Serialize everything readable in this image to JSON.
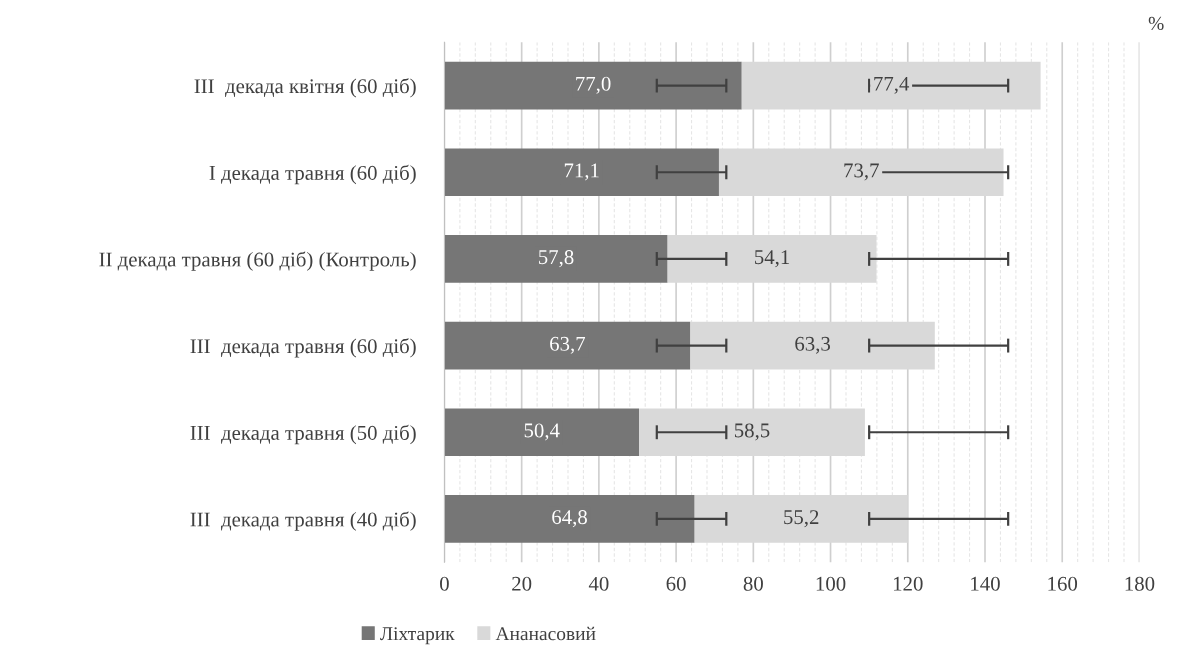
{
  "chart_data": {
    "type": "bar",
    "orientation": "horizontal",
    "stacked": true,
    "categories": [
      "III  декада квітня (60 діб)",
      "I декада травня (60 діб)",
      "II декада травня (60 діб) (Контроль)",
      "III  декада травня (60 діб)",
      "III  декада травня (50 діб)",
      "III  декада травня (40 діб)"
    ],
    "series": [
      {
        "name": "Ліхтарик",
        "color": "#767676",
        "values": [
          77.0,
          71.1,
          57.8,
          63.7,
          50.4,
          64.8
        ],
        "value_labels": [
          "77,0",
          "71,1",
          "57,8",
          "63,7",
          "50,4",
          "64,8"
        ],
        "errors": [
          [
            55,
            73
          ],
          [
            55,
            73
          ],
          [
            55,
            73
          ],
          [
            55,
            73
          ],
          [
            55,
            73
          ],
          [
            55,
            73
          ]
        ]
      },
      {
        "name": "Ананасовий",
        "color": "#d9d9d9",
        "values": [
          77.4,
          73.7,
          54.1,
          63.3,
          58.5,
          55.2
        ],
        "value_labels": [
          "77,4",
          "73,7",
          "54,1",
          "63,3",
          "58,5",
          "55,2"
        ],
        "errors": [
          [
            110,
            146
          ],
          [
            110,
            146
          ],
          [
            110,
            146
          ],
          [
            110,
            146
          ],
          [
            110,
            146
          ],
          [
            110,
            146
          ]
        ]
      }
    ],
    "xlim": [
      0,
      180
    ],
    "xticks": [
      0,
      20,
      40,
      60,
      80,
      100,
      120,
      140,
      160,
      180
    ],
    "grid": "x",
    "legend": "bottom",
    "annotations": [
      "%"
    ]
  }
}
